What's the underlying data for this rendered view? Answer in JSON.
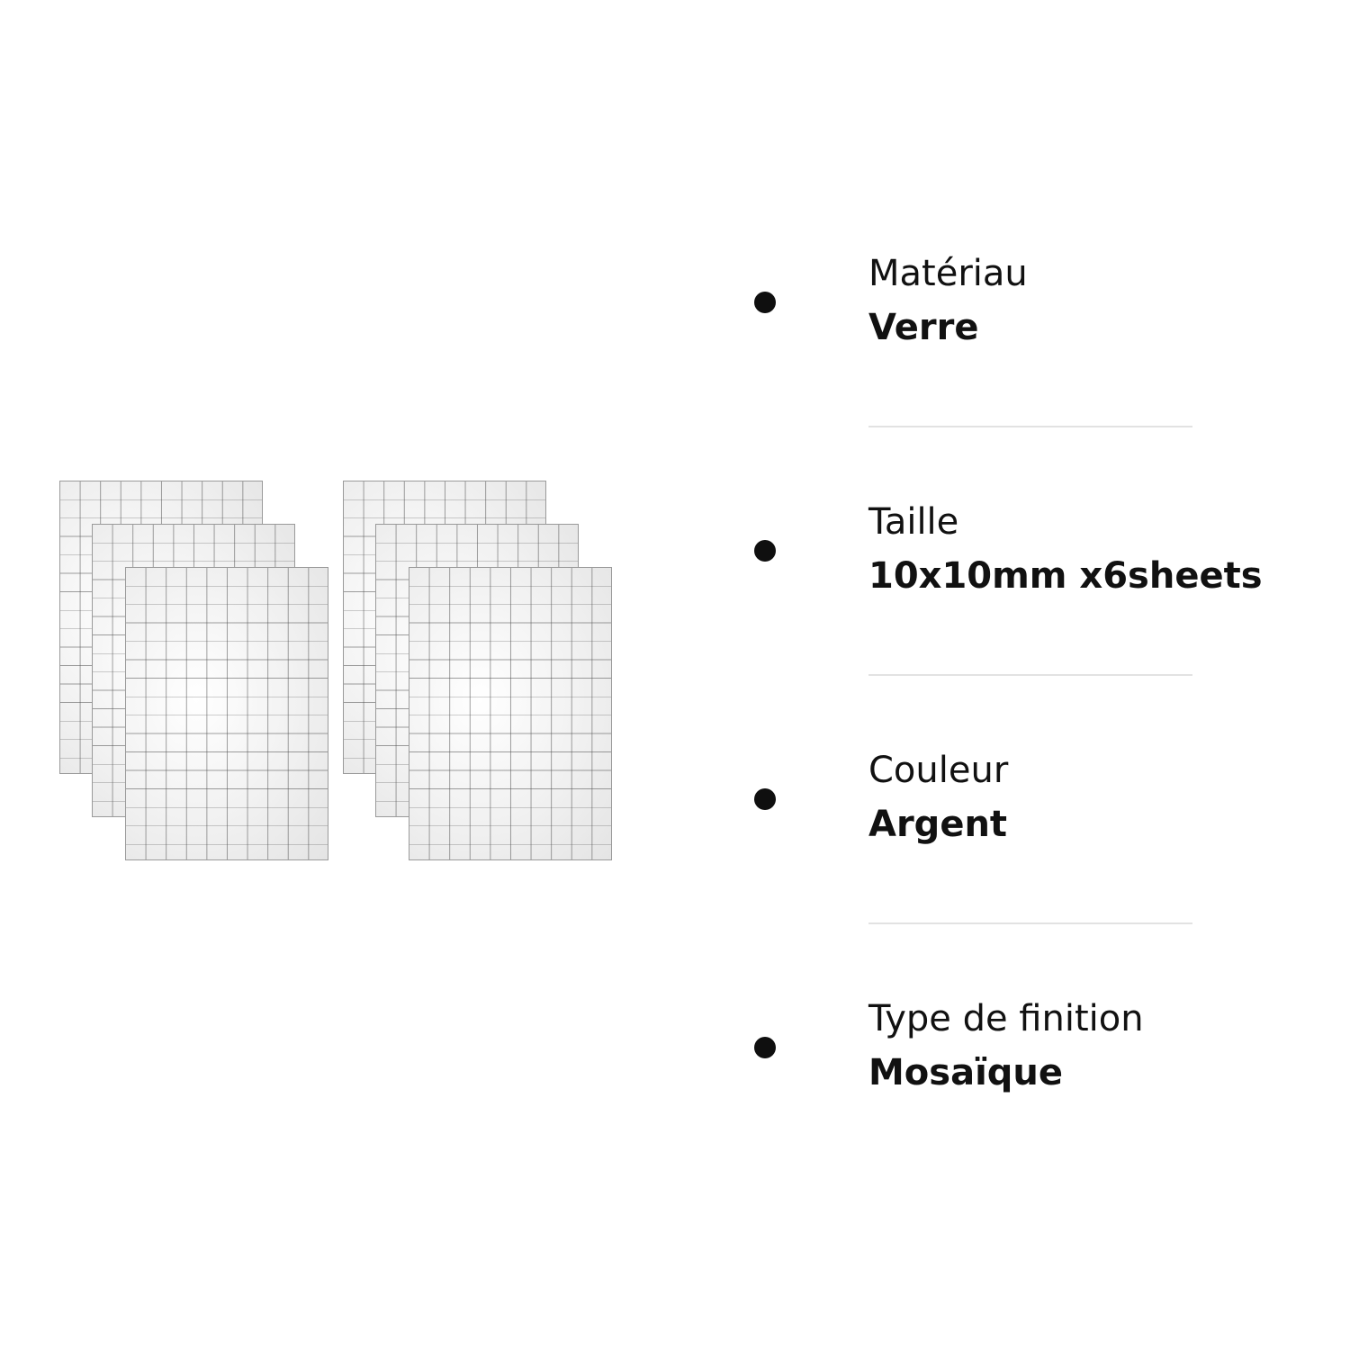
{
  "specs": [
    {
      "label": "Matériau",
      "value": "Verre"
    },
    {
      "label": "Taille",
      "value": "10x10mm x6sheets"
    },
    {
      "label": "Couleur",
      "value": "Argent"
    },
    {
      "label": "Type de finition",
      "value": "Mosaïque"
    }
  ],
  "colors": {
    "background": "#ffffff",
    "text": "#111111",
    "bullet": "#0f0f0f",
    "divider": "#e2e2e2",
    "sheet": "#f6f6f6"
  },
  "product_image": {
    "sheet_count": 6,
    "icon": "mirror-mosaic-sheets-icon"
  }
}
